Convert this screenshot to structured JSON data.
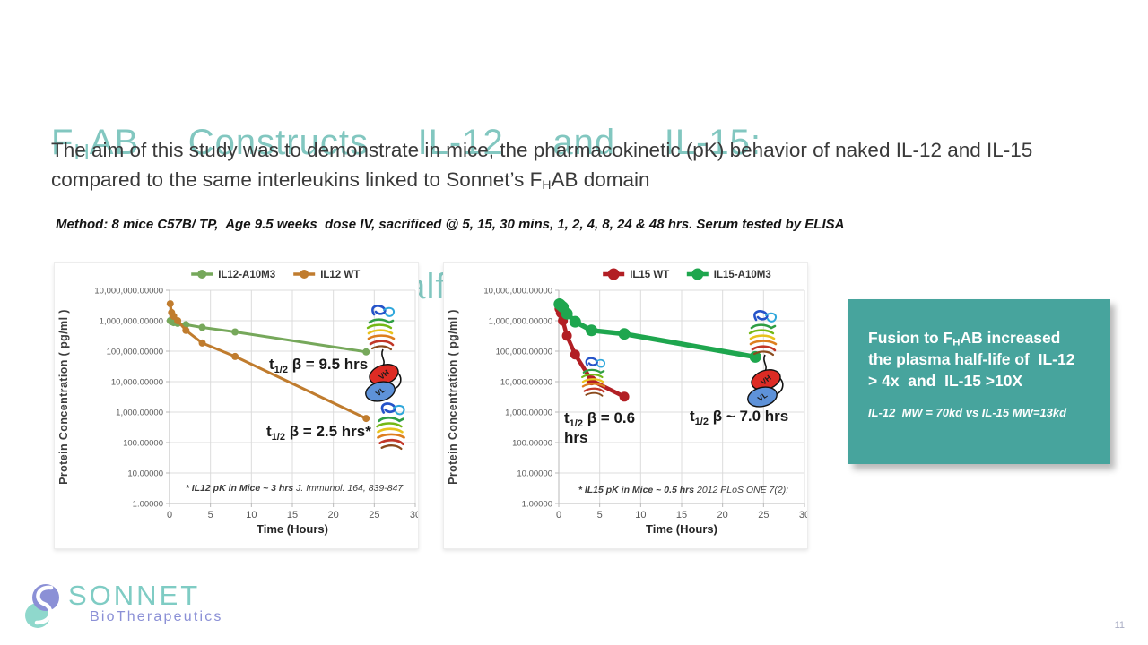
{
  "slide": {
    "page_number": "11",
    "title": {
      "line1_pre": "F",
      "line1_sub": "H",
      "line1_rest": "AB  Constructs  IL-12  and  IL-15:",
      "line2": "Pharmacokinetic  Half  Life"
    },
    "subtitle": {
      "part1": "The aim of this study was to demonstrate in mice, the pharmacokinetic (pK) behavior of naked IL-12 and IL-15 compared to the same interleukins linked to Sonnet’s F",
      "sub": "H",
      "part2": "AB domain"
    },
    "method": "Method: 8 mice C57B/ TP,  Age 9.5 weeks  dose IV, sacrificed @ 5, 15, 30 mins, 1, 2, 4, 8, 24 & 48 hrs. Serum tested by ELISA"
  },
  "callout": {
    "bg_color": "#47a49d",
    "line1_pre": "Fusion to F",
    "line1_sub": "H",
    "line1_post": "AB increased",
    "line2": "the plasma half-life of  IL-12",
    "line3": "> 4x  and  IL-15 >10X",
    "note": "IL-12  MW = 70kd vs IL-15 MW=13kd"
  },
  "logo": {
    "name": "SONNET",
    "tagline": "BioTherapeutics",
    "teal": "#7fccc4",
    "purple": "#8b90d6"
  },
  "construct_labels": {
    "vh": "VH",
    "vl": "VL"
  },
  "chart_data": [
    {
      "type": "line",
      "title": "",
      "ylabel": "Protein Concentration ( pg/ml )",
      "xlabel": "Time (Hours)",
      "y_scale": "log",
      "ylim": [
        1,
        10000000
      ],
      "xlim": [
        0,
        30
      ],
      "grid": true,
      "legend_position": "top",
      "x_ticks": [
        0,
        5,
        10,
        15,
        20,
        25,
        30
      ],
      "y_tick_labels": [
        "10,000,000.00000",
        "1,000,000.00000",
        "100,000.00000",
        "10,000.00000",
        "1,000.00000",
        "100.00000",
        "10.00000",
        "1.00000"
      ],
      "series": [
        {
          "name": "IL12-A10M3",
          "color": "#76a85b",
          "width": 3,
          "marker_r": 4,
          "x": [
            0.083,
            0.25,
            0.5,
            1,
            2,
            4,
            8,
            24
          ],
          "y": [
            1000000,
            930000,
            870000,
            820000,
            740000,
            600000,
            430000,
            95000
          ]
        },
        {
          "name": "IL12 WT",
          "color": "#c07c2e",
          "width": 3,
          "marker_r": 4,
          "x": [
            0.083,
            0.25,
            0.5,
            1,
            2,
            4,
            8,
            24
          ],
          "y": [
            3600000,
            1850000,
            1400000,
            1000000,
            480000,
            185000,
            67000,
            620
          ]
        }
      ],
      "annotations": [
        {
          "pre": "t",
          "sub": "1/2",
          "text": " β = 9.5 hrs",
          "x": 239,
          "y": 118
        },
        {
          "pre": "t",
          "sub": "1/2",
          "text": " β = 2.5 hrs*",
          "x": 236,
          "y": 193
        }
      ],
      "footnote": {
        "bold": "* IL12 pK in Mice ~ 3 hrs",
        "rest": "  J. Immunol. 164, 839-847"
      }
    },
    {
      "type": "line",
      "title": "",
      "ylabel": "Protein Concentration ( pg/ml )",
      "xlabel": "Time (Hours)",
      "y_scale": "log",
      "ylim": [
        1,
        10000000
      ],
      "xlim": [
        0,
        30
      ],
      "grid": true,
      "legend_position": "top",
      "x_ticks": [
        0,
        5,
        10,
        15,
        20,
        25,
        30
      ],
      "y_tick_labels": [
        "10,000,000.00000",
        "1,000,000.00000",
        "100,000.00000",
        "10,000.00000",
        "1,000.00000",
        "100.00000",
        "10.00000",
        "1.00000"
      ],
      "series": [
        {
          "name": "IL15 WT",
          "color": "#b21f24",
          "width": 4.5,
          "marker_r": 5.5,
          "x": [
            0.083,
            0.25,
            0.5,
            1,
            2,
            4,
            8
          ],
          "y": [
            2500000,
            1800000,
            1000000,
            320000,
            78000,
            11000,
            3200
          ]
        },
        {
          "name": "IL15-A10M3",
          "color": "#1ea64e",
          "width": 5.5,
          "marker_r": 6.5,
          "x": [
            0.083,
            0.25,
            0.5,
            1,
            2,
            4,
            8,
            24
          ],
          "y": [
            3500000,
            3200000,
            2800000,
            1700000,
            930000,
            480000,
            370000,
            65000
          ]
        }
      ],
      "annotations": [
        {
          "pre": "t",
          "sub": "1/2",
          "text": " β = 0.6",
          "x": 134,
          "y": 178,
          "line2": "hrs",
          "line2_dy": 22
        },
        {
          "pre": "t",
          "sub": "1/2",
          "text": " β ~ 7.0 hrs",
          "x": 274,
          "y": 176
        }
      ],
      "footnote": {
        "bold": "* IL15 pK in Mice ~ 0.5 hrs",
        "rest": "  2012 PLoS ONE 7(2):"
      }
    }
  ]
}
